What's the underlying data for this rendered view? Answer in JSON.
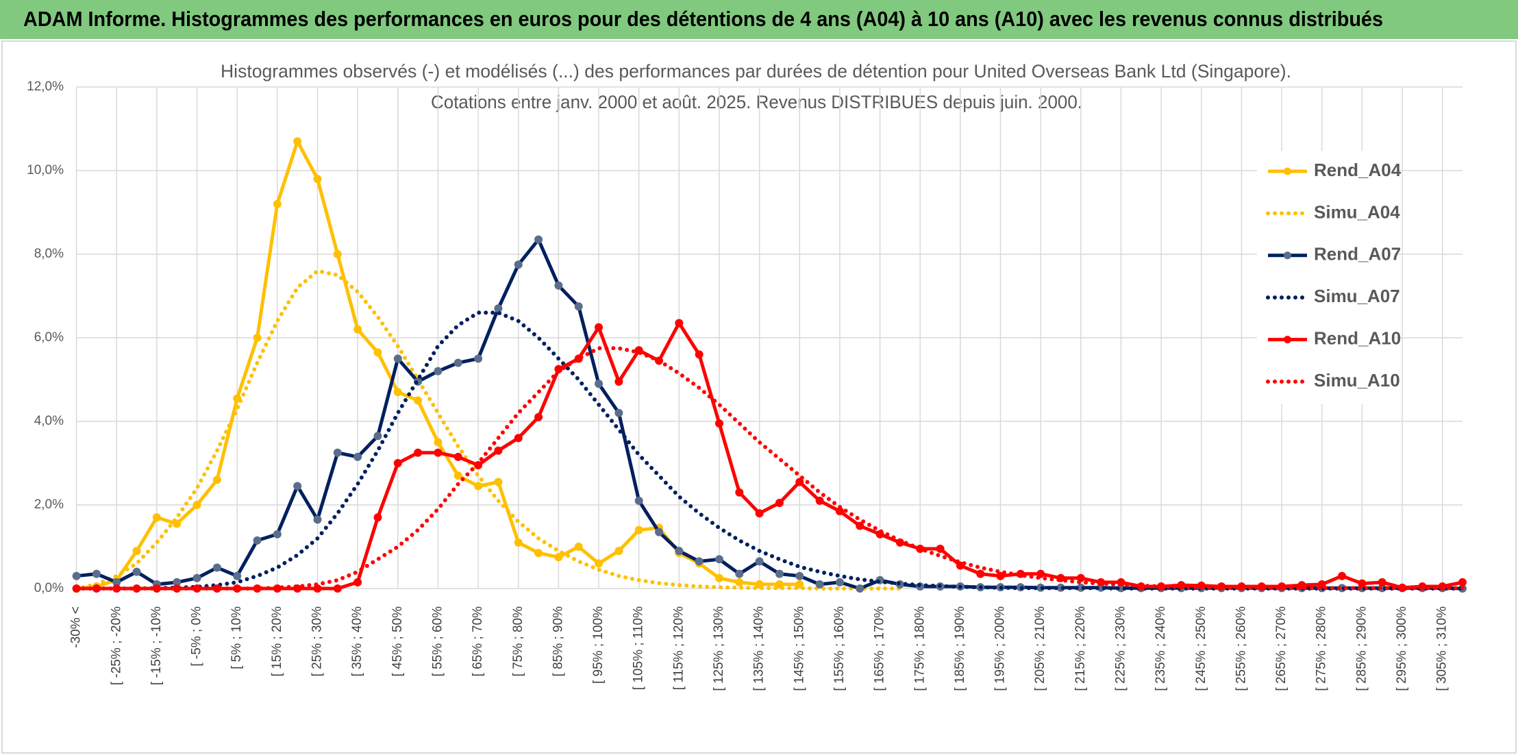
{
  "chart_data": {
    "type": "line",
    "title": "ADAM Informe. Histogrammes des performances en euros pour des détentions de 4 ans (A04) à 10 ans (A10) avec les revenus connus distribués",
    "subtitle": [
      "Histogrammes observés (-) et modélisés (...) des performances par durées de détention pour United Overseas Bank Ltd (Singapore).",
      "Cotations entre janv. 2000 et août. 2025. Revenus DISTRIBUES depuis juin. 2000."
    ],
    "categories": [
      "-30% <",
      null,
      "[ -25% ; -20%",
      null,
      "[ -15% ; -10%",
      null,
      "[ -5% ; 0%",
      null,
      "[ 5% ; 10%",
      null,
      "[ 15% ; 20%",
      null,
      "[ 25% ; 30%",
      null,
      "[ 35% ; 40%",
      null,
      "[ 45% ; 50%",
      null,
      "[ 55% ; 60%",
      null,
      "[ 65% ; 70%",
      null,
      "[ 75% ; 80%",
      null,
      "[ 85% ; 90%",
      null,
      "[ 95% ; 100%",
      null,
      "[ 105% ; 110%",
      null,
      "[ 115% ; 120%",
      null,
      "[ 125% ; 130%",
      null,
      "[ 135% ; 140%",
      null,
      "[ 145% ; 150%",
      null,
      "[ 155% ; 160%",
      null,
      "[ 165% ; 170%",
      null,
      "[ 175% ; 180%",
      null,
      "[ 185% ; 190%",
      null,
      "[ 195% ; 200%",
      null,
      "[ 205% ; 210%",
      null,
      "[ 215% ; 220%",
      null,
      "[ 225% ; 230%",
      null,
      "[ 235% ; 240%",
      null,
      "[ 245% ; 250%",
      null,
      "[ 255% ; 260%",
      null,
      "[ 265% ; 270%",
      null,
      "[ 275% ; 280%",
      null,
      "[ 285% ; 290%",
      null,
      "[ 295% ; 300%",
      null,
      "[ 305% ; 310%",
      null
    ],
    "series": [
      {
        "name": "Rend_A04",
        "color": "#ffc000",
        "dash": "solid",
        "markers": true,
        "marker_color": "#ffc000",
        "values": [
          0,
          0.05,
          0.2,
          0.9,
          1.7,
          1.55,
          2.0,
          2.6,
          4.55,
          6.0,
          9.2,
          10.7,
          9.8,
          8.0,
          6.2,
          5.65,
          4.7,
          4.5,
          3.5,
          2.7,
          2.45,
          2.55,
          1.1,
          0.85,
          0.75,
          1.0,
          0.6,
          0.9,
          1.4,
          1.45,
          0.85,
          0.6,
          0.25,
          0.15,
          0.1,
          0.1,
          0.1,
          null,
          null,
          null,
          null,
          null,
          null,
          null,
          null,
          null,
          null,
          null,
          null,
          null,
          null,
          null,
          null,
          null,
          null,
          null,
          null,
          null,
          null,
          null,
          null,
          null,
          null,
          null,
          null,
          null,
          null,
          null,
          null,
          null
        ]
      },
      {
        "name": "Simu_A04",
        "color": "#ffc000",
        "dash": "dotted",
        "markers": false,
        "values": [
          0,
          0.1,
          0.3,
          0.6,
          1.1,
          1.7,
          2.4,
          3.3,
          4.3,
          5.4,
          6.4,
          7.2,
          7.6,
          7.5,
          7.1,
          6.5,
          5.8,
          5.0,
          4.2,
          3.4,
          2.7,
          2.1,
          1.6,
          1.2,
          0.9,
          0.65,
          0.45,
          0.3,
          0.2,
          0.13,
          0.08,
          0.05,
          0.03,
          0.02,
          0.01,
          0.01,
          0.01,
          0,
          0,
          0,
          0,
          0,
          null,
          null,
          null,
          null,
          null,
          null,
          null,
          null,
          null,
          null,
          null,
          null,
          null,
          null,
          null,
          null,
          null,
          null,
          null,
          null,
          null,
          null,
          null,
          null,
          null,
          null,
          null,
          null
        ]
      },
      {
        "name": "Rend_A07",
        "color": "#002060",
        "dash": "solid",
        "markers": true,
        "marker_color": "#5a6e8c",
        "values": [
          0.3,
          0.35,
          0.15,
          0.4,
          0.1,
          0.15,
          0.25,
          0.5,
          0.3,
          1.15,
          1.3,
          2.45,
          1.65,
          3.25,
          3.15,
          3.65,
          5.5,
          4.95,
          5.2,
          5.4,
          5.5,
          6.7,
          7.75,
          8.35,
          7.25,
          6.75,
          4.9,
          4.2,
          2.1,
          1.35,
          0.9,
          0.65,
          0.7,
          0.35,
          0.65,
          0.35,
          0.3,
          0.1,
          0.15,
          0,
          0.2,
          0.1,
          0.05,
          0.05,
          0.05,
          0.03,
          0.03,
          0.03,
          0.02,
          0.02,
          0.02,
          0.02,
          0.01,
          0.01,
          0.01,
          0.01,
          0.01,
          0.01,
          0.01,
          0.01,
          0.01,
          0.01,
          0.01,
          0.01,
          0.01,
          0.01,
          0.01,
          0.01,
          0.01,
          0
        ]
      },
      {
        "name": "Simu_A07",
        "color": "#002060",
        "dash": "dotted",
        "markers": false,
        "values": [
          0,
          0,
          0,
          0,
          0.01,
          0.02,
          0.04,
          0.08,
          0.15,
          0.3,
          0.5,
          0.8,
          1.2,
          1.8,
          2.5,
          3.3,
          4.2,
          5.0,
          5.8,
          6.3,
          6.6,
          6.6,
          6.4,
          6.0,
          5.5,
          5.0,
          4.4,
          3.8,
          3.2,
          2.7,
          2.2,
          1.8,
          1.45,
          1.15,
          0.9,
          0.7,
          0.52,
          0.4,
          0.3,
          0.22,
          0.16,
          0.12,
          0.08,
          0.06,
          0.04,
          0.03,
          0.02,
          0.01,
          0.01,
          0.01,
          0.01,
          0.01,
          0,
          0,
          0,
          0,
          0,
          0,
          0,
          0,
          0,
          0,
          0,
          0,
          0,
          0,
          0,
          0,
          0,
          0
        ]
      },
      {
        "name": "Rend_A10",
        "color": "#ff0000",
        "dash": "solid",
        "markers": true,
        "marker_color": "#ff0000",
        "values": [
          0,
          0,
          0,
          0,
          0,
          0,
          0,
          0,
          0,
          0,
          0,
          0,
          0,
          0,
          0.15,
          1.7,
          3.0,
          3.25,
          3.25,
          3.15,
          2.95,
          3.3,
          3.6,
          4.1,
          5.25,
          5.5,
          6.25,
          4.95,
          5.7,
          5.45,
          6.35,
          5.6,
          3.95,
          2.3,
          1.8,
          2.05,
          2.55,
          2.1,
          1.85,
          1.5,
          1.3,
          1.1,
          0.95,
          0.95,
          0.55,
          0.35,
          0.3,
          0.35,
          0.35,
          0.25,
          0.25,
          0.15,
          0.15,
          0.05,
          0.05,
          0.08,
          0.07,
          0.05,
          0.05,
          0.05,
          0.05,
          0.08,
          0.1,
          0.3,
          0.12,
          0.15,
          0.02,
          0.05,
          0.05,
          0.15
        ]
      },
      {
        "name": "Simu_A10",
        "color": "#ff0000",
        "dash": "dotted",
        "markers": false,
        "values": [
          0,
          0,
          0,
          0,
          0,
          0,
          0,
          0,
          0,
          0,
          0.02,
          0.05,
          0.1,
          0.2,
          0.4,
          0.7,
          1.0,
          1.4,
          1.9,
          2.5,
          3.0,
          3.6,
          4.2,
          4.7,
          5.2,
          5.5,
          5.75,
          5.75,
          5.65,
          5.45,
          5.15,
          4.8,
          4.4,
          3.95,
          3.5,
          3.1,
          2.7,
          2.3,
          1.95,
          1.65,
          1.38,
          1.15,
          0.95,
          0.78,
          0.63,
          0.5,
          0.4,
          0.32,
          0.25,
          0.2,
          0.15,
          0.12,
          0.09,
          0.07,
          0.05,
          0.04,
          0.03,
          0.02,
          0.02,
          0.01,
          0.01,
          0.01,
          0.01,
          0.01,
          0.01,
          0.01,
          0.01,
          0.01,
          0.01,
          0.01
        ]
      }
    ],
    "ylim": [
      0,
      12
    ],
    "yticks": [
      {
        "value": 0,
        "label": "0,0%"
      },
      {
        "value": 2,
        "label": "2,0%"
      },
      {
        "value": 4,
        "label": "4,0%"
      },
      {
        "value": 6,
        "label": "6,0%"
      },
      {
        "value": 8,
        "label": "8,0%"
      },
      {
        "value": 10,
        "label": "10,0%"
      },
      {
        "value": 12,
        "label": "12,0%"
      }
    ],
    "grid": true,
    "legend": "right"
  }
}
